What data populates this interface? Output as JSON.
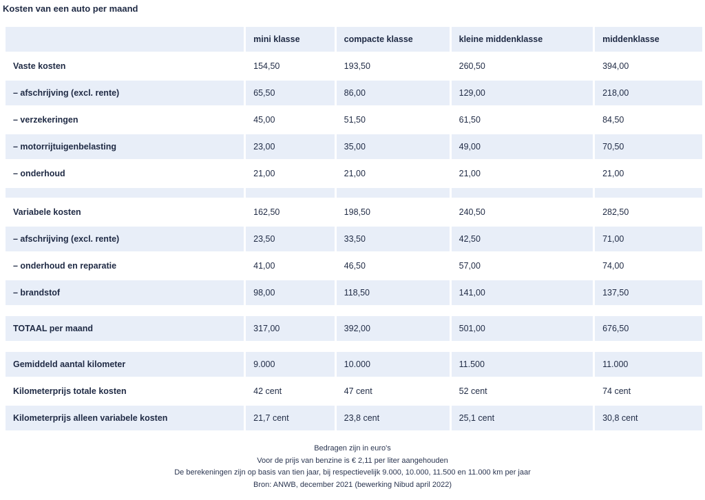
{
  "title": "Kosten van een auto per maand",
  "columns": [
    "",
    "mini klasse",
    "compacte klasse",
    "kleine middenklasse",
    "middenklasse"
  ],
  "rows": [
    {
      "type": "data",
      "shaded": false,
      "label": "Vaste kosten",
      "values": [
        "154,50",
        "193,50",
        "260,50",
        "394,00"
      ]
    },
    {
      "type": "data",
      "shaded": true,
      "label": "– afschrijving (excl. rente)",
      "values": [
        "65,50",
        "86,00",
        "129,00",
        "218,00"
      ]
    },
    {
      "type": "data",
      "shaded": false,
      "label": "– verzekeringen",
      "values": [
        "45,00",
        "51,50",
        "61,50",
        "84,50"
      ]
    },
    {
      "type": "data",
      "shaded": true,
      "label": "– motorrijtuigenbelasting",
      "values": [
        "23,00",
        "35,00",
        "49,00",
        "70,50"
      ]
    },
    {
      "type": "data",
      "shaded": false,
      "label": "– onderhoud",
      "values": [
        "21,00",
        "21,00",
        "21,00",
        "21,00"
      ]
    },
    {
      "type": "spacer"
    },
    {
      "type": "data",
      "shaded": false,
      "label": "Variabele kosten",
      "values": [
        "162,50",
        "198,50",
        "240,50",
        "282,50"
      ]
    },
    {
      "type": "data",
      "shaded": true,
      "label": "– afschrijving (excl. rente)",
      "values": [
        "23,50",
        "33,50",
        "42,50",
        "71,00"
      ]
    },
    {
      "type": "data",
      "shaded": false,
      "label": "– onderhoud en reparatie",
      "values": [
        "41,00",
        "46,50",
        "57,00",
        "74,00"
      ]
    },
    {
      "type": "data",
      "shaded": true,
      "label": "– brandstof",
      "values": [
        "98,00",
        "118,50",
        "141,00",
        "137,50"
      ]
    },
    {
      "type": "gap"
    },
    {
      "type": "data",
      "shaded": true,
      "label": "TOTAAL per maand",
      "values": [
        "317,00",
        "392,00",
        "501,00",
        "676,50"
      ]
    },
    {
      "type": "gap"
    },
    {
      "type": "data",
      "shaded": true,
      "label": "Gemiddeld aantal kilometer",
      "values": [
        "9.000",
        "10.000",
        "11.500",
        "11.000"
      ]
    },
    {
      "type": "data",
      "shaded": false,
      "label": "Kilometerprijs totale kosten",
      "values": [
        "42 cent",
        "47 cent",
        "52 cent",
        "74 cent"
      ]
    },
    {
      "type": "data",
      "shaded": true,
      "label": "Kilometerprijs alleen variabele kosten",
      "values": [
        "21,7 cent",
        "23,8 cent",
        "25,1 cent",
        "30,8 cent"
      ]
    }
  ],
  "footnotes": [
    "Bedragen zijn in euro's",
    "Voor de prijs van benzine is € 2,11 per liter aangehouden",
    "De berekeningen zijn op basis van tien jaar, bij respectievelijk 9.000, 10.000, 11.500 en 11.000 km per jaar",
    "Bron: ANWB, december 2021 (bewerking Nibud april 2022)"
  ]
}
